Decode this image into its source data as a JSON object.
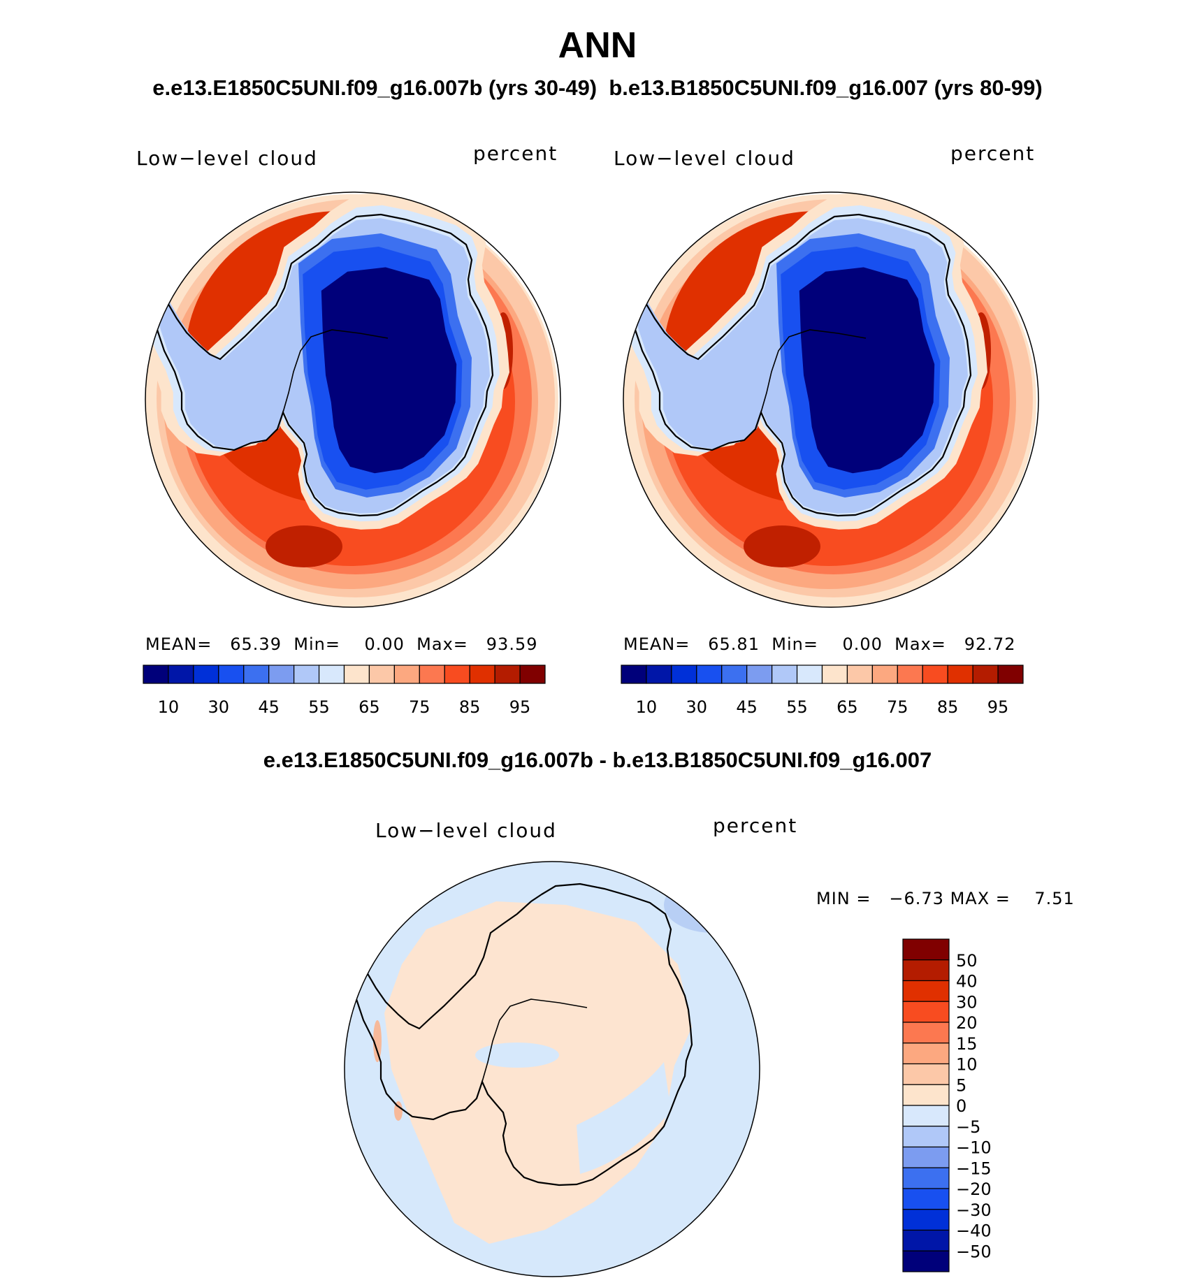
{
  "title": "ANN",
  "subtitle_left": "e.e13.E1850C5UNI.f09_g16.007b (yrs 30-49)",
  "subtitle_right": "b.e13.B1850C5UNI.f09_g16.007 (yrs 80-99)",
  "diff_title": "e.e13.E1850C5UNI.f09_g16.007b - b.e13.B1850C5UNI.f09_g16.007",
  "panels": [
    {
      "variable": "Low−level cloud",
      "units": "percent",
      "stats": {
        "mean_label": "MEAN=",
        "mean": "65.39",
        "min_label": "Min=",
        "min": "0.00",
        "max_label": "Max=",
        "max": "93.59"
      }
    },
    {
      "variable": "Low−level cloud",
      "units": "percent",
      "stats": {
        "mean_label": "MEAN=",
        "mean": "65.81",
        "min_label": "Min=",
        "min": "0.00",
        "max_label": "Max=",
        "max": "92.72"
      }
    }
  ],
  "diff_panel": {
    "variable": "Low−level cloud",
    "units": "percent",
    "stats": {
      "min_label": "MIN =",
      "min": "−6.73",
      "max_label": "MAX =",
      "max": "7.51"
    }
  },
  "colorbar_abs": {
    "colors": [
      "#00007a",
      "#0016a8",
      "#0030d8",
      "#1850f0",
      "#3c70f0",
      "#7c9cf0",
      "#b0c8f8",
      "#d8e8fc",
      "#fde4cc",
      "#fcc8a8",
      "#fca880",
      "#fc7850",
      "#f84c20",
      "#e03000",
      "#b41c00",
      "#800000"
    ],
    "tick_labels": [
      "10",
      "30",
      "45",
      "55",
      "65",
      "75",
      "85",
      "95"
    ]
  },
  "colorbar_diff": {
    "colors": [
      "#800000",
      "#b41c00",
      "#e03000",
      "#f84c20",
      "#fc7850",
      "#fca880",
      "#fcc8a8",
      "#fde4cc",
      "#d8e8fc",
      "#b0c8f8",
      "#7c9cf0",
      "#3c70f0",
      "#1850f0",
      "#0030d8",
      "#0016a8",
      "#00007a"
    ],
    "tick_labels": [
      "50",
      "40",
      "30",
      "20",
      "15",
      "10",
      "5",
      "0",
      "−5",
      "−10",
      "−15",
      "−20",
      "−30",
      "−40",
      "−50"
    ]
  },
  "map_colors": {
    "dark_red": "#c02000",
    "red": "#e03000",
    "orange_red": "#f84c20",
    "orange": "#fc7850",
    "salmon": "#fca880",
    "peach": "#fcc8a8",
    "cream": "#fde4cc",
    "pale_blue": "#d8e8fc",
    "light_blue": "#b0c8f8",
    "mid_blue": "#3c70f0",
    "blue": "#1850f0",
    "navy": "#00007a",
    "diff_neg": "#d6e8fb",
    "diff_pos": "#fde4d0",
    "diff_negmid": "#b8cff5",
    "diff_posmid": "#f7b99a"
  }
}
